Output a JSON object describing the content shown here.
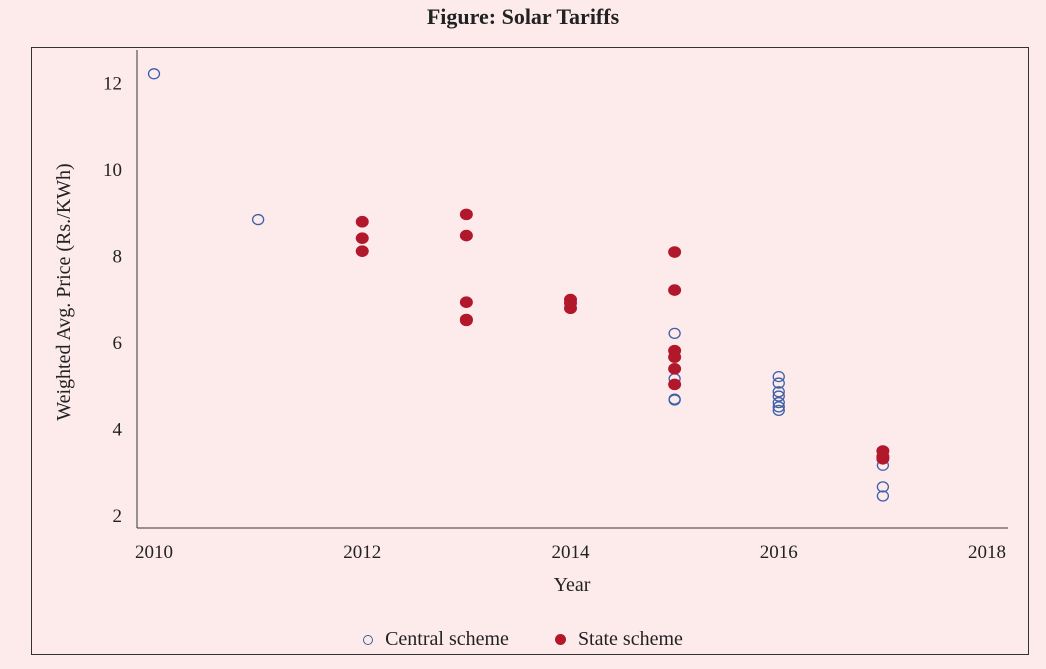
{
  "chart_data": {
    "type": "scatter",
    "title": "Figure: Solar Tariffs",
    "xlabel": "Year",
    "ylabel": "Weighted Avg. Price (Rs./KWh)",
    "xlim": [
      2010,
      2018
    ],
    "ylim": [
      1.7,
      12.75
    ],
    "xticks": [
      2010,
      2012,
      2014,
      2016,
      2018
    ],
    "yticks": [
      2,
      4,
      6,
      8,
      10,
      12
    ],
    "legend_position": "bottom-center",
    "series": [
      {
        "name": "Central scheme",
        "marker": "open-circle",
        "color": "#3d5fa8",
        "points": [
          [
            2010,
            12.2
          ],
          [
            2011,
            8.83
          ],
          [
            2015,
            6.2
          ],
          [
            2015,
            5.15
          ],
          [
            2015,
            4.68
          ],
          [
            2015,
            4.66
          ],
          [
            2016,
            5.2
          ],
          [
            2016,
            5.05
          ],
          [
            2016,
            4.85
          ],
          [
            2016,
            4.75
          ],
          [
            2016,
            4.6
          ],
          [
            2016,
            4.5
          ],
          [
            2016,
            4.42
          ],
          [
            2017,
            3.15
          ],
          [
            2017,
            2.65
          ],
          [
            2017,
            2.44
          ]
        ]
      },
      {
        "name": "State scheme",
        "marker": "filled-circle",
        "color": "#b2182b",
        "points": [
          [
            2012,
            8.78
          ],
          [
            2012,
            8.4
          ],
          [
            2012,
            8.1
          ],
          [
            2013,
            8.95
          ],
          [
            2013,
            8.46
          ],
          [
            2013,
            6.92
          ],
          [
            2013,
            6.52
          ],
          [
            2013,
            6.5
          ],
          [
            2014,
            6.98
          ],
          [
            2014,
            6.9
          ],
          [
            2014,
            6.78
          ],
          [
            2015,
            8.08
          ],
          [
            2015,
            7.2
          ],
          [
            2015,
            5.8
          ],
          [
            2015,
            5.65
          ],
          [
            2015,
            5.38
          ],
          [
            2015,
            5.02
          ],
          [
            2017,
            3.48
          ],
          [
            2017,
            3.35
          ],
          [
            2017,
            3.3
          ]
        ]
      }
    ]
  }
}
